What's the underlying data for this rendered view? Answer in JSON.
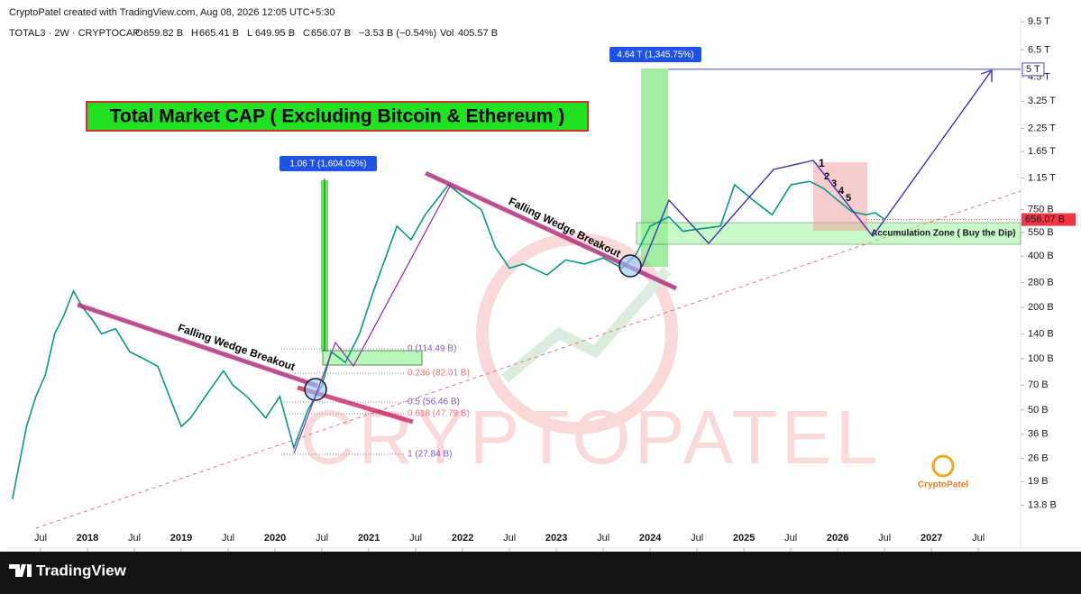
{
  "header": {
    "credit": "CryptoPatel created with TradingView.com, Aug 08, 2026 12:05 UTC+5:30",
    "symbol": "TOTAL3 · 2W · CRYPTOCAP",
    "ohlc": [
      {
        "key": "O",
        "value": "659.82 B"
      },
      {
        "key": "H",
        "value": "665.41 B"
      },
      {
        "key": "L",
        "value": "649.95 B"
      },
      {
        "key": "C",
        "value": "656.07 B"
      }
    ],
    "change": "−3.53 B (−0.54%)",
    "volume": {
      "key": "Vol",
      "value": "405.57 B"
    }
  },
  "chart_data": {
    "type": "line",
    "title": "Total Market CAP ( Excluding Bitcoin & Ethereum )",
    "log_scale": true,
    "color": "#089981",
    "x": [
      2017.2,
      2017.35,
      2017.45,
      2017.55,
      2017.65,
      2017.75,
      2017.85,
      2017.95,
      2018.05,
      2018.15,
      2018.3,
      2018.45,
      2018.6,
      2018.75,
      2018.9,
      2019.0,
      2019.1,
      2019.3,
      2019.45,
      2019.55,
      2019.7,
      2019.9,
      2020.05,
      2020.2,
      2020.35,
      2020.5,
      2020.6,
      2020.75,
      2020.9,
      2021.05,
      2021.3,
      2021.45,
      2021.6,
      2021.85,
      2022.0,
      2022.2,
      2022.35,
      2022.5,
      2022.65,
      2022.9,
      2023.1,
      2023.3,
      2023.5,
      2023.7,
      2023.85,
      2024.0,
      2024.2,
      2024.35,
      2024.55,
      2024.75,
      2024.9,
      2025.1,
      2025.3,
      2025.5,
      2025.7,
      2025.85,
      2026.0,
      2026.15,
      2026.3,
      2026.4,
      2026.5
    ],
    "values": [
      15,
      40,
      60,
      80,
      140,
      180,
      250,
      200,
      170,
      140,
      150,
      110,
      100,
      90,
      55,
      40,
      45,
      65,
      85,
      70,
      60,
      45,
      60,
      30,
      50,
      70,
      110,
      95,
      140,
      250,
      600,
      500,
      700,
      1050,
      900,
      750,
      450,
      340,
      360,
      310,
      380,
      360,
      390,
      340,
      410,
      600,
      680,
      560,
      580,
      600,
      1050,
      850,
      700,
      1050,
      1100,
      1000,
      850,
      730,
      700,
      720,
      656.07
    ],
    "xlim": [
      2017.144,
      2027.95
    ],
    "ylim": [
      7.74,
      10000
    ],
    "xticks": [
      {
        "value": 2017.5,
        "label": "Jul"
      },
      2018,
      {
        "value": 2018.5,
        "label": "Jul"
      },
      2019,
      {
        "value": 2019.5,
        "label": "Jul"
      },
      2020,
      {
        "value": 2020.5,
        "label": "Jul"
      },
      2021,
      {
        "value": 2021.5,
        "label": "Jul"
      },
      2022,
      {
        "value": 2022.5,
        "label": "Jul"
      },
      2023,
      {
        "value": 2023.5,
        "label": "Jul"
      },
      2024,
      {
        "value": 2024.5,
        "label": "Jul"
      },
      2025,
      {
        "value": 2025.5,
        "label": "Jul"
      },
      2026,
      {
        "value": 2026.5,
        "label": "Jul"
      },
      2027,
      {
        "value": 2027.5,
        "label": "Jul"
      }
    ],
    "yticks": [
      {
        "value": 9500,
        "label": "9.5 T"
      },
      {
        "value": 6500,
        "label": "6.5 T"
      },
      {
        "value": 4500,
        "label": "4.5 T"
      },
      {
        "value": 3250,
        "label": "3.25 T"
      },
      {
        "value": 2250,
        "label": "2.25 T"
      },
      {
        "value": 1650,
        "label": "1.65 T"
      },
      {
        "value": 1150,
        "label": "1.15 T"
      },
      {
        "value": 750,
        "label": "750 B"
      },
      {
        "value": 550,
        "label": "550 B"
      },
      {
        "value": 400,
        "label": "400 B"
      },
      {
        "value": 280,
        "label": "280 B"
      },
      {
        "value": 200,
        "label": "200 B"
      },
      {
        "value": 140,
        "label": "140 B"
      },
      {
        "value": 100,
        "label": "100 B"
      },
      {
        "value": 70,
        "label": "70 B"
      },
      {
        "value": 50,
        "label": "50 B"
      },
      {
        "value": 36,
        "label": "36 B"
      },
      {
        "value": 26,
        "label": "26 B"
      },
      {
        "value": 19,
        "label": "19 B"
      },
      {
        "value": 13.8,
        "label": "13.8 B"
      }
    ],
    "price_tag": {
      "value": 656.07,
      "label": "656.07 B"
    },
    "target_tag": {
      "value": 5000,
      "label": "5 T"
    },
    "annotations": {
      "wedge_1": "Falling Wedge Breakout",
      "wedge_2": "Falling Wedge Breakout",
      "move_1": "1.06 T (1,604.05%)",
      "move_2": "4.64 T (1,345.75%)",
      "fib": [
        "0 (114.49 B)",
        "0.236 (82.01 B)",
        "0.5 (56.46 B)",
        "0.618 (47.79 B)",
        "1 (27.84 B)"
      ],
      "accumulation": "Accumulation Zone ( Buy the Dip)",
      "waves": [
        "1",
        "2",
        "3",
        "4",
        "5"
      ],
      "watermark": "CRYPTOPATEL",
      "logo": "CryptoPatel"
    }
  },
  "footer": {
    "brand": "TradingView"
  }
}
